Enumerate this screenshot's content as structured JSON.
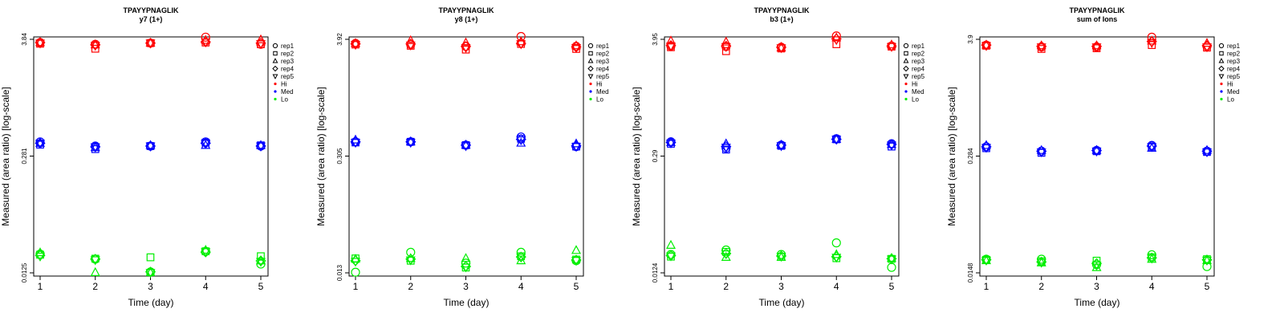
{
  "colors": {
    "Hi": "#ff0000",
    "Med": "#0000ff",
    "Lo": "#00ee00"
  },
  "legend": {
    "reps": [
      {
        "label": "rep1",
        "shape": "circle"
      },
      {
        "label": "rep2",
        "shape": "square"
      },
      {
        "label": "rep3",
        "shape": "triangle-up"
      },
      {
        "label": "rep4",
        "shape": "diamond"
      },
      {
        "label": "rep5",
        "shape": "triangle-down"
      }
    ],
    "levels": [
      {
        "label": "Hi",
        "color": "#ff0000"
      },
      {
        "label": "Med",
        "color": "#0000ff"
      },
      {
        "label": "Lo",
        "color": "#00ee00"
      }
    ]
  },
  "chart_data": [
    {
      "type": "scatter",
      "title": "TPAYYPNAGLIK",
      "subtitle": "y7 (1+)",
      "xlabel": "Time (day)",
      "ylabel": "Measured (area ratio) [log-scale]",
      "x_ticks": [
        1,
        2,
        3,
        4,
        5
      ],
      "y_ticks": [
        "3.84",
        "0.281",
        "0.0125"
      ],
      "yscale": "log",
      "ylim": [
        0.0125,
        3.84
      ],
      "series": [
        {
          "name": "Hi",
          "color": "#ff0000",
          "points": {
            "rep1": [
              3.55,
              3.4,
              3.5,
              4.05,
              3.4
            ],
            "rep2": [
              3.45,
              3.05,
              3.5,
              3.55,
              3.4
            ],
            "rep3": [
              3.55,
              3.35,
              3.5,
              3.75,
              3.8
            ],
            "rep4": [
              3.55,
              3.35,
              3.5,
              3.6,
              3.5
            ],
            "rep5": [
              3.5,
              3.3,
              3.5,
              3.6,
              3.45
            ]
          }
        },
        {
          "name": "Med",
          "color": "#0000ff",
          "points": {
            "rep1": [
              0.31,
              0.28,
              0.28,
              0.31,
              0.28
            ],
            "rep2": [
              0.29,
              0.26,
              0.28,
              0.305,
              0.285
            ],
            "rep3": [
              0.3,
              0.27,
              0.285,
              0.285,
              0.285
            ],
            "rep4": [
              0.3,
              0.275,
              0.28,
              0.3,
              0.28
            ],
            "rep5": [
              0.3,
              0.275,
              0.28,
              0.3,
              0.28
            ]
          }
        },
        {
          "name": "Lo",
          "color": "#00ee00",
          "points": {
            "rep1": [
              0.0198,
              0.0175,
              0.0128,
              0.0212,
              0.0155
            ],
            "rep2": [
              0.0195,
              0.0177,
              0.0183,
              0.0212,
              0.0188
            ],
            "rep3": [
              0.0205,
              0.0126,
              0.0126,
              0.0218,
              0.0168
            ],
            "rep4": [
              0.0192,
              0.0175,
              0.0128,
              0.0208,
              0.0168
            ],
            "rep5": [
              0.0188,
              0.0172,
              0.0126,
              0.021,
              0.0165
            ]
          }
        }
      ]
    },
    {
      "type": "scatter",
      "title": "TPAYYPNAGLIK",
      "subtitle": "y8 (1+)",
      "xlabel": "Time (day)",
      "ylabel": "Measured (area ratio) [log-scale]",
      "x_ticks": [
        1,
        2,
        3,
        4,
        5
      ],
      "y_ticks": [
        "3.92",
        "0.305",
        "0.013"
      ],
      "yscale": "log",
      "ylim": [
        0.013,
        3.92
      ],
      "series": [
        {
          "name": "Hi",
          "color": "#ff0000",
          "points": {
            "rep1": [
              3.55,
              3.45,
              3.3,
              4.2,
              3.3
            ],
            "rep2": [
              3.45,
              3.35,
              3.05,
              3.5,
              3.1
            ],
            "rep3": [
              3.55,
              3.8,
              3.6,
              3.7,
              3.35
            ],
            "rep4": [
              3.5,
              3.5,
              3.3,
              3.55,
              3.25
            ],
            "rep5": [
              3.45,
              3.4,
              3.2,
              3.5,
              3.2
            ]
          }
        },
        {
          "name": "Med",
          "color": "#0000ff",
          "points": {
            "rep1": [
              0.32,
              0.32,
              0.295,
              0.36,
              0.285
            ],
            "rep2": [
              0.315,
              0.32,
              0.295,
              0.345,
              0.285
            ],
            "rep3": [
              0.335,
              0.32,
              0.295,
              0.31,
              0.305
            ],
            "rep4": [
              0.32,
              0.32,
              0.295,
              0.34,
              0.29
            ],
            "rep5": [
              0.315,
              0.315,
              0.29,
              0.335,
              0.285
            ]
          }
        },
        {
          "name": "Lo",
          "color": "#00ee00",
          "points": {
            "rep1": [
              0.0132,
              0.0215,
              0.0165,
              0.0215,
              0.0175
            ],
            "rep2": [
              0.0185,
              0.0175,
              0.0148,
              0.0195,
              0.018
            ],
            "rep3": [
              0.0182,
              0.0185,
              0.0185,
              0.0175,
              0.0225
            ],
            "rep4": [
              0.0175,
              0.0182,
              0.0152,
              0.0192,
              0.0178
            ],
            "rep5": [
              0.0172,
              0.0178,
              0.015,
              0.019,
              0.0176
            ]
          }
        }
      ]
    },
    {
      "type": "scatter",
      "title": "TPAYYPNAGLIK",
      "subtitle": "b3 (1+)",
      "xlabel": "Time (day)",
      "ylabel": "Measured (area ratio) [log-scale]",
      "x_ticks": [
        1,
        2,
        3,
        4,
        5
      ],
      "y_ticks": [
        "3.95",
        "0.29",
        "0.0124"
      ],
      "yscale": "log",
      "ylim": [
        0.0124,
        3.95
      ],
      "series": [
        {
          "name": "Hi",
          "color": "#ff0000",
          "points": {
            "rep1": [
              3.35,
              3.3,
              3.25,
              4.3,
              3.35
            ],
            "rep2": [
              3.25,
              2.95,
              3.15,
              3.5,
              3.3
            ],
            "rep3": [
              3.8,
              3.7,
              3.2,
              4.1,
              3.45
            ],
            "rep4": [
              3.4,
              3.35,
              3.25,
              4.0,
              3.35
            ],
            "rep5": [
              3.35,
              3.3,
              3.2,
              3.9,
              3.3
            ]
          }
        },
        {
          "name": "Med",
          "color": "#0000ff",
          "points": {
            "rep1": [
              0.315,
              0.27,
              0.29,
              0.34,
              0.3
            ],
            "rep2": [
              0.3,
              0.26,
              0.285,
              0.335,
              0.28
            ],
            "rep3": [
              0.31,
              0.3,
              0.29,
              0.335,
              0.295
            ],
            "rep4": [
              0.31,
              0.28,
              0.29,
              0.335,
              0.295
            ],
            "rep5": [
              0.305,
              0.275,
              0.285,
              0.335,
              0.29
            ]
          }
        },
        {
          "name": "Lo",
          "color": "#00ee00",
          "points": {
            "rep1": [
              0.0195,
              0.0218,
              0.0195,
              0.026,
              0.0142
            ],
            "rep2": [
              0.0185,
              0.0208,
              0.0185,
              0.0178,
              0.0175
            ],
            "rep3": [
              0.0245,
              0.0182,
              0.0182,
              0.0195,
              0.0178
            ],
            "rep4": [
              0.019,
              0.02,
              0.0188,
              0.0185,
              0.0176
            ],
            "rep5": [
              0.0188,
              0.0198,
              0.0186,
              0.0182,
              0.0174
            ]
          }
        }
      ]
    },
    {
      "type": "scatter",
      "title": "TPAYYPNAGLIK",
      "subtitle": "sum of Ions",
      "xlabel": "Time (day)",
      "ylabel": "Measured (area ratio) [log-scale]",
      "x_ticks": [
        1,
        2,
        3,
        4,
        5
      ],
      "y_ticks": [
        "3.9",
        "0.284",
        "0.0148"
      ],
      "yscale": "log",
      "ylim": [
        0.0148,
        3.9
      ],
      "series": [
        {
          "name": "Hi",
          "color": "#ff0000",
          "points": {
            "rep1": [
              3.4,
              3.25,
              3.25,
              4.1,
              3.3
            ],
            "rep2": [
              3.35,
              3.1,
              3.15,
              3.4,
              3.2
            ],
            "rep3": [
              3.4,
              3.35,
              3.35,
              3.75,
              3.55
            ],
            "rep4": [
              3.4,
              3.3,
              3.3,
              3.7,
              3.35
            ],
            "rep5": [
              3.35,
              3.25,
              3.25,
              3.6,
              3.25
            ]
          }
        },
        {
          "name": "Med",
          "color": "#0000ff",
          "points": {
            "rep1": [
              0.3,
              0.27,
              0.275,
              0.31,
              0.27
            ],
            "rep2": [
              0.29,
              0.26,
              0.27,
              0.3,
              0.265
            ],
            "rep3": [
              0.31,
              0.275,
              0.275,
              0.29,
              0.275
            ],
            "rep4": [
              0.3,
              0.27,
              0.275,
              0.305,
              0.27
            ],
            "rep5": [
              0.295,
              0.265,
              0.27,
              0.3,
              0.265
            ]
          }
        },
        {
          "name": "Lo",
          "color": "#00ee00",
          "points": {
            "rep1": [
              0.0205,
              0.0205,
              0.018,
              0.0228,
              0.0172
            ],
            "rep2": [
              0.0202,
              0.0195,
              0.0198,
              0.0215,
              0.0205
            ],
            "rep3": [
              0.0198,
              0.0188,
              0.0168,
              0.0205,
              0.0198
            ],
            "rep4": [
              0.0202,
              0.0192,
              0.0185,
              0.0212,
              0.0202
            ],
            "rep5": [
              0.02,
              0.019,
              0.0178,
              0.021,
              0.02
            ]
          }
        }
      ]
    }
  ]
}
